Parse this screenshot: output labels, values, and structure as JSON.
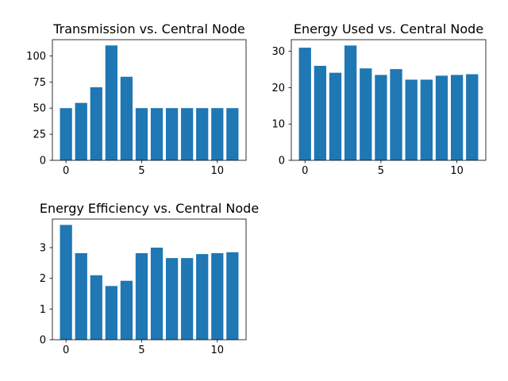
{
  "colors": {
    "bar": "#1f77b4",
    "axis": "#000000",
    "background": "#ffffff"
  },
  "chart_data": [
    {
      "type": "bar",
      "title": "Transmission vs. Central Node",
      "xlabel": "",
      "ylabel": "",
      "x": [
        0,
        1,
        2,
        3,
        4,
        5,
        6,
        7,
        8,
        9,
        10,
        11
      ],
      "values": [
        50,
        55,
        70,
        110,
        80,
        50,
        50,
        50,
        50,
        50,
        50,
        50
      ],
      "xlim": [
        -0.9,
        11.9
      ],
      "ylim": [
        0,
        115.5
      ],
      "xticks": [
        0,
        5,
        10
      ],
      "yticks": [
        0,
        25,
        50,
        75,
        100
      ],
      "grid": false
    },
    {
      "type": "bar",
      "title": "Energy Used vs. Central Node",
      "xlabel": "",
      "ylabel": "",
      "x": [
        0,
        1,
        2,
        3,
        4,
        5,
        6,
        7,
        8,
        9,
        10,
        11
      ],
      "values": [
        31.0,
        26.0,
        24.1,
        31.6,
        25.3,
        23.5,
        25.1,
        22.2,
        22.2,
        23.3,
        23.5,
        23.7
      ],
      "xlim": [
        -0.9,
        11.9
      ],
      "ylim": [
        0,
        33.2
      ],
      "xticks": [
        0,
        5,
        10
      ],
      "yticks": [
        0,
        10,
        20,
        30
      ],
      "grid": false
    },
    {
      "type": "bar",
      "title": "Energy Efficiency vs. Central Node",
      "xlabel": "",
      "ylabel": "",
      "x": [
        0,
        1,
        2,
        3,
        4,
        5,
        6,
        7,
        8,
        9,
        10,
        11
      ],
      "values": [
        3.74,
        2.82,
        2.1,
        1.75,
        1.92,
        2.82,
        3.0,
        2.66,
        2.66,
        2.79,
        2.82,
        2.85
      ],
      "xlim": [
        -0.9,
        11.9
      ],
      "ylim": [
        0,
        3.93
      ],
      "xticks": [
        0,
        5,
        10
      ],
      "yticks": [
        0,
        1,
        2,
        3
      ],
      "grid": false
    }
  ]
}
